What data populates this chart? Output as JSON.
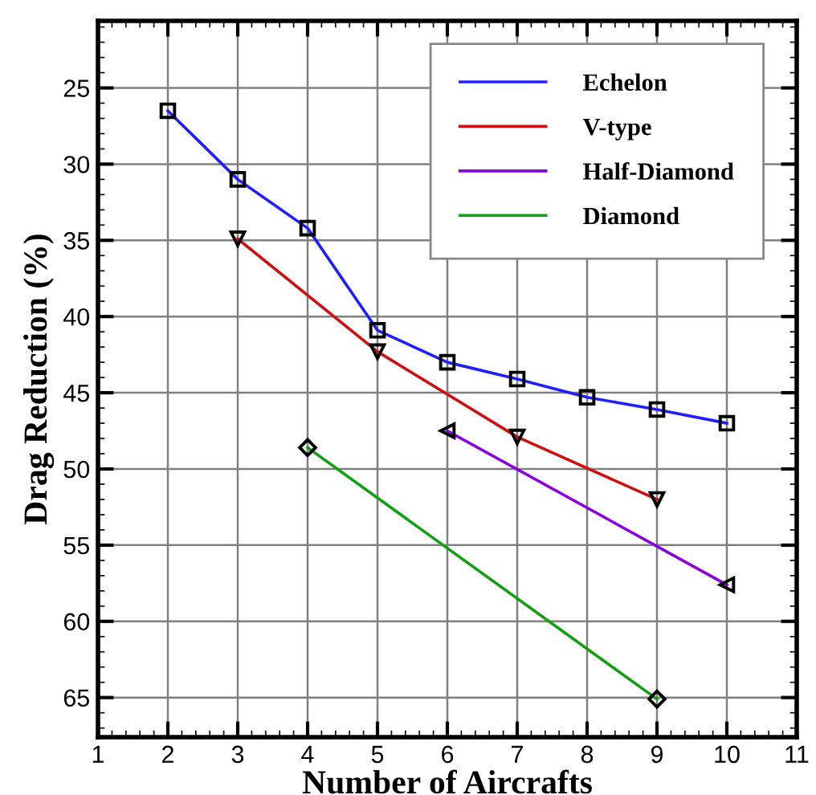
{
  "chart_data": {
    "type": "line",
    "xlabel": "Number of Aircrafts",
    "ylabel": "Drag Reduction (%)",
    "xlim": [
      1,
      11
    ],
    "xticks": [
      1,
      2,
      3,
      4,
      5,
      6,
      7,
      8,
      9,
      10,
      11
    ],
    "ylim": [
      67.6,
      20.6
    ],
    "yticks": [
      25,
      30,
      35,
      40,
      45,
      50,
      55,
      60,
      65
    ],
    "grid": true,
    "legend": "top right",
    "line_style": "solid",
    "series": [
      {
        "name": "Echelon",
        "color": "#2020ff",
        "marker": "square",
        "x": [
          2,
          3,
          4,
          5,
          6,
          7,
          8,
          9,
          10
        ],
        "values": [
          26.5,
          31.0,
          34.2,
          40.9,
          43.0,
          44.1,
          45.3,
          46.1,
          47.0
        ]
      },
      {
        "name": "V-type",
        "color": "#d01010",
        "marker": "triangle_down",
        "x": [
          3,
          5,
          7,
          9
        ],
        "values": [
          34.9,
          42.3,
          47.9,
          52.0
        ]
      },
      {
        "name": "Half-Diamond",
        "color": "#8a00e0",
        "marker": "triangle_left",
        "x": [
          6,
          10
        ],
        "values": [
          47.5,
          57.6
        ]
      },
      {
        "name": "Diamond",
        "color": "#10a010",
        "marker": "diamond",
        "x": [
          4,
          9
        ],
        "values": [
          48.6,
          65.1
        ]
      }
    ]
  }
}
